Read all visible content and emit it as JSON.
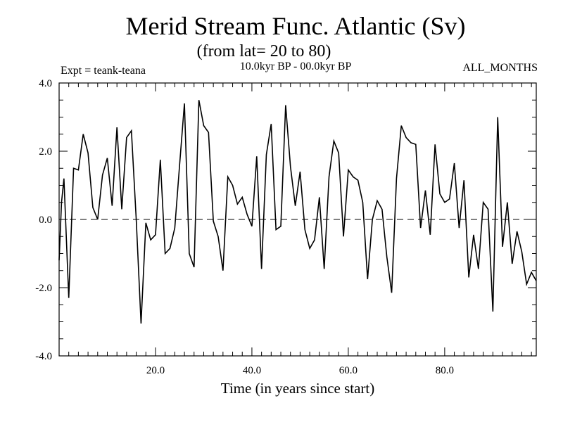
{
  "chart_data": {
    "type": "line",
    "title": "Merid Stream Func. Atlantic (Sv)",
    "subtitle": "(from lat= 20 to 80)",
    "annotations": {
      "left": "Expt = teank-teana",
      "center": "10.0kyr BP - 00.0kyr BP",
      "right": "ALL_MONTHS"
    },
    "xlabel": "Time (in years since start)",
    "ylabel": "",
    "xlim": [
      0,
      99
    ],
    "ylim": [
      -4.0,
      4.0
    ],
    "xticks": [
      20,
      40,
      60,
      80
    ],
    "xtick_labels": [
      "20.0",
      "40.0",
      "60.0",
      "80.0"
    ],
    "yticks": [
      -4,
      -2,
      0,
      2,
      4
    ],
    "ytick_labels": [
      "-4.0",
      "-2.0",
      "0.0",
      "2.0",
      "4.0"
    ],
    "reference_line": {
      "y": 0.0,
      "style": "dashed"
    },
    "series": [
      {
        "name": "Merid Stream Func.",
        "color": "#000000",
        "x": [
          0,
          0.5,
          1,
          2,
          3,
          4,
          5,
          6,
          7,
          8,
          9,
          10,
          11,
          12,
          13,
          14,
          15,
          16,
          17,
          18,
          19,
          20,
          21,
          22,
          23,
          24,
          25,
          26,
          27,
          28,
          29,
          30,
          31,
          32,
          33,
          34,
          35,
          36,
          37,
          38,
          39,
          40,
          41,
          42,
          43,
          44,
          45,
          46,
          47,
          48,
          49,
          50,
          51,
          52,
          53,
          54,
          55,
          56,
          57,
          58,
          59,
          60,
          61,
          62,
          63,
          64,
          65,
          66,
          67,
          68,
          69,
          70,
          71,
          72,
          73,
          74,
          75,
          76,
          77,
          78,
          79,
          80,
          81,
          82,
          83,
          84,
          85,
          86,
          87,
          88,
          89,
          90,
          91,
          92,
          93,
          94,
          95,
          96,
          97,
          98,
          99
        ],
        "values": [
          -1.2,
          0.5,
          1.2,
          -2.3,
          1.5,
          1.45,
          2.5,
          1.95,
          0.35,
          0.0,
          1.3,
          1.8,
          0.4,
          2.7,
          0.3,
          2.4,
          2.6,
          0.0,
          -3.05,
          -0.1,
          -0.6,
          -0.45,
          1.75,
          -1.0,
          -0.85,
          -0.25,
          1.6,
          3.4,
          -1.0,
          -1.4,
          3.5,
          2.75,
          2.55,
          -0.05,
          -0.5,
          -1.5,
          1.25,
          1.0,
          0.45,
          0.65,
          0.15,
          -0.2,
          1.85,
          -1.45,
          1.9,
          2.8,
          -0.3,
          -0.2,
          3.35,
          1.55,
          0.4,
          1.4,
          -0.3,
          -0.85,
          -0.6,
          0.65,
          -1.45,
          1.25,
          2.3,
          1.95,
          -0.5,
          1.45,
          1.25,
          1.15,
          0.5,
          -1.75,
          0.0,
          0.55,
          0.3,
          -1.1,
          -2.15,
          1.2,
          2.75,
          2.4,
          2.25,
          2.2,
          -0.25,
          0.85,
          -0.45,
          2.2,
          0.75,
          0.5,
          0.6,
          1.65,
          -0.25,
          1.15,
          -1.7,
          -0.45,
          -1.45,
          0.5,
          0.3,
          -2.7,
          3.0,
          -0.8,
          0.5,
          -1.3,
          -0.35,
          -0.95,
          -1.9,
          -1.55,
          -1.8
        ]
      }
    ]
  }
}
